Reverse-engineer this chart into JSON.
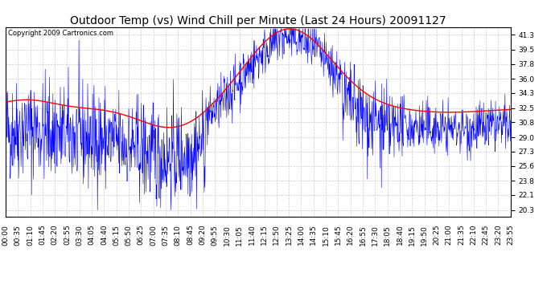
{
  "title": "Outdoor Temp (vs) Wind Chill per Minute (Last 24 Hours) 20091127",
  "copyright": "Copyright 2009 Cartronics.com",
  "yticks": [
    20.3,
    22.1,
    23.8,
    25.6,
    27.3,
    29.0,
    30.8,
    32.5,
    34.3,
    36.0,
    37.8,
    39.5,
    41.3
  ],
  "ylim": [
    19.5,
    42.2
  ],
  "x_labels": [
    "00:00",
    "00:35",
    "01:10",
    "01:45",
    "02:20",
    "02:55",
    "03:30",
    "04:05",
    "04:40",
    "05:15",
    "05:50",
    "06:25",
    "07:00",
    "07:35",
    "08:10",
    "08:45",
    "09:20",
    "09:55",
    "10:30",
    "11:05",
    "11:40",
    "12:15",
    "12:50",
    "13:25",
    "14:00",
    "14:35",
    "15:10",
    "15:45",
    "16:20",
    "16:55",
    "17:30",
    "18:05",
    "18:40",
    "19:15",
    "19:50",
    "20:25",
    "21:00",
    "21:35",
    "22:10",
    "22:45",
    "23:20",
    "23:55"
  ],
  "background_color": "#ffffff",
  "grid_color": "#cccccc",
  "title_fontsize": 10,
  "copyright_fontsize": 6,
  "tick_fontsize": 6.5,
  "blue_color": "#0000ff",
  "red_color": "#ff0000"
}
